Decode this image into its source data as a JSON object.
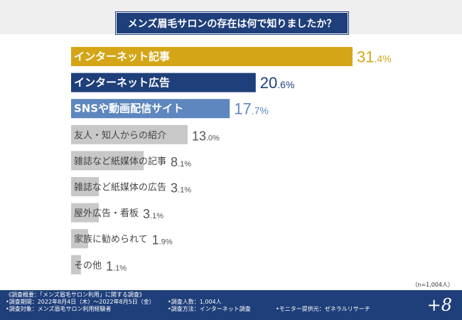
{
  "chart_data": {
    "type": "bar",
    "orientation": "horizontal",
    "title": "メンズ眉毛サロンの存在は何で知りましたか？",
    "unit": "%",
    "sample_size": "（n=1,004人）",
    "categories": [
      "インターネット記事",
      "インターネット広告",
      "SNSや動画配信サイト",
      "友人・知人からの紹介",
      "雑誌など紙媒体の記事",
      "雑誌など紙媒体の広告",
      "屋外広告・看板",
      "家族に勧められて",
      "その他"
    ],
    "values": [
      31.4,
      20.6,
      17.7,
      13.0,
      8.1,
      3.1,
      3.1,
      1.9,
      1.1
    ],
    "value_labels": [
      "31.4",
      "20.6",
      "17.7",
      "13.0",
      "8.1",
      "3.1",
      "3.1",
      "1.9",
      "1.1"
    ],
    "xlim": [
      0,
      31.4
    ],
    "grid": false
  },
  "colors": {
    "bar_first": "#d4a617",
    "bar_second": "#1f3f7a",
    "bar_third": "#5d87be",
    "bar_rest": "#c8c8c8",
    "value_first": "#d4a617",
    "value_second": "#1f3f7a",
    "value_third": "#5d87be",
    "value_rest": "#555555",
    "footer_bg": "#1f3f7a"
  },
  "footer": {
    "overview": "《調査概要：「メンズ眉毛サロン利用」に関する調査》",
    "period": "•調査期間：2022年8月4日（木）〜2022年8月5日（金）",
    "target": "•調査対象：メンズ眉毛サロン利用経験者",
    "count": "•調査人数：1,004人",
    "method": "•調査方法：インターネット調査",
    "provider": "•モニター提供元：ゼネラルリサーチ",
    "logo": "+8"
  }
}
